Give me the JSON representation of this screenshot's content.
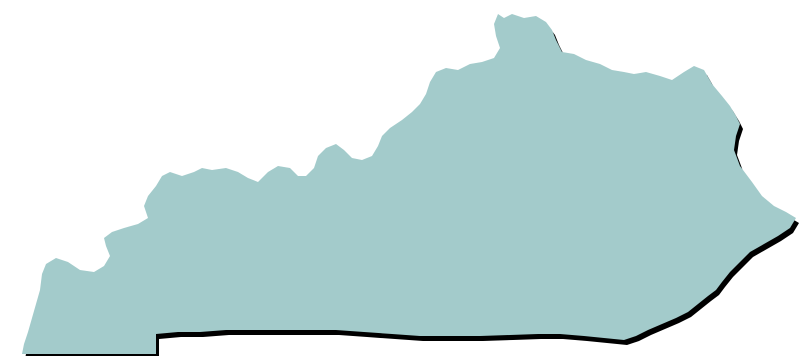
{
  "map": {
    "region_name": "Kentucky",
    "fill_color": "#a3cbcb",
    "shadow_color": "#000000",
    "background_color": "#ffffff"
  }
}
